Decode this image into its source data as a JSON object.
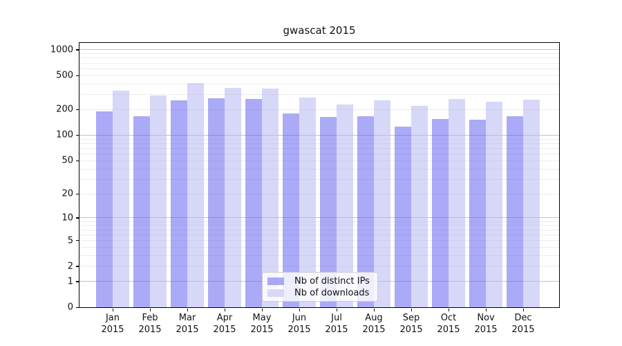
{
  "title": "gwascat 2015",
  "chart_data": {
    "type": "bar",
    "title": "gwascat 2015",
    "xlabel": "",
    "ylabel": "",
    "year": "2015",
    "categories": [
      "Jan",
      "Feb",
      "Mar",
      "Apr",
      "May",
      "Jun",
      "Jul",
      "Aug",
      "Sep",
      "Oct",
      "Nov",
      "Dec"
    ],
    "series": [
      {
        "name": "Nb of distinct IPs",
        "color": "rgba(100,100,238,0.55)",
        "legend_color": "#a9a9f1",
        "values": [
          190,
          168,
          258,
          270,
          265,
          180,
          165,
          168,
          126,
          155,
          153,
          168
        ]
      },
      {
        "name": "Nb of downloads",
        "color": "rgba(182,182,243,0.55)",
        "legend_color": "#d7d7f6",
        "values": [
          332,
          292,
          406,
          362,
          350,
          278,
          230,
          257,
          220,
          268,
          247,
          260
        ]
      }
    ],
    "yscale": "log1p",
    "ylim": [
      0,
      1200
    ],
    "yticks": [
      0,
      1,
      2,
      5,
      10,
      20,
      50,
      100,
      200,
      500,
      1000
    ],
    "major_gridlines": [
      1,
      10,
      100,
      1000
    ],
    "minor_gridlines": [
      2,
      3,
      4,
      5,
      6,
      7,
      8,
      9,
      20,
      30,
      40,
      50,
      60,
      70,
      80,
      90,
      200,
      300,
      400,
      500,
      600,
      700,
      800,
      900
    ],
    "grid": true,
    "legend_position": "lower center"
  },
  "colors": {
    "grid_major": "#c2c2c2",
    "grid_minor": "#ececec",
    "spine": "#000000",
    "text": "#111111"
  }
}
